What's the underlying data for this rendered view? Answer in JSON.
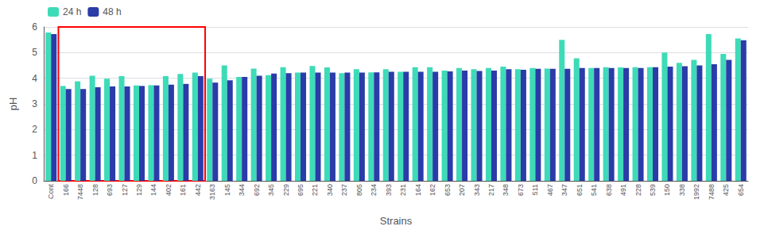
{
  "chart_data": {
    "type": "bar",
    "categories": [
      "Cont",
      "166",
      "7448",
      "128",
      "693",
      "127",
      "129",
      "144",
      "402",
      "161",
      "442",
      "3163",
      "145",
      "344",
      "692",
      "345",
      "229",
      "695",
      "221",
      "340",
      "237",
      "805",
      "234",
      "393",
      "231",
      "164",
      "162",
      "653",
      "207",
      "343",
      "217",
      "348",
      "673",
      "511",
      "467",
      "347",
      "651",
      "541",
      "638",
      "491",
      "228",
      "539",
      "150",
      "338",
      "1992",
      "7488",
      "425",
      "654"
    ],
    "series": [
      {
        "name": "24 h",
        "color": "#3DDBB8",
        "values": [
          5.78,
          3.7,
          3.88,
          4.1,
          3.98,
          4.08,
          3.72,
          3.73,
          4.08,
          4.17,
          4.22,
          3.98,
          4.5,
          4.05,
          4.38,
          4.12,
          4.43,
          4.22,
          4.48,
          4.42,
          4.2,
          4.35,
          4.23,
          4.35,
          4.25,
          4.43,
          4.43,
          4.3,
          4.4,
          4.35,
          4.4,
          4.45,
          4.35,
          4.4,
          4.38,
          5.5,
          4.78,
          4.4,
          4.43,
          4.42,
          4.43,
          4.43,
          5.0,
          4.6,
          4.72,
          5.72,
          4.95,
          5.55
        ]
      },
      {
        "name": "48 h",
        "color": "#2B3BA8",
        "values": [
          5.72,
          3.58,
          3.58,
          3.65,
          3.68,
          3.68,
          3.7,
          3.72,
          3.75,
          3.78,
          4.08,
          3.83,
          3.92,
          4.05,
          4.1,
          4.18,
          4.2,
          4.22,
          4.22,
          4.22,
          4.22,
          4.22,
          4.23,
          4.25,
          4.25,
          4.25,
          4.25,
          4.27,
          4.3,
          4.28,
          4.3,
          4.35,
          4.33,
          4.37,
          4.37,
          4.37,
          4.4,
          4.4,
          4.4,
          4.4,
          4.4,
          4.43,
          4.45,
          4.47,
          4.5,
          4.55,
          4.72,
          5.48
        ]
      }
    ],
    "xlabel": "Strains",
    "ylabel": "pH",
    "ylim": [
      0,
      6
    ],
    "yticks": [
      0,
      1,
      2,
      3,
      4,
      5,
      6
    ],
    "grid": true,
    "legend": "upper left",
    "box": {
      "from": "166",
      "to": "442",
      "color": "red"
    }
  }
}
